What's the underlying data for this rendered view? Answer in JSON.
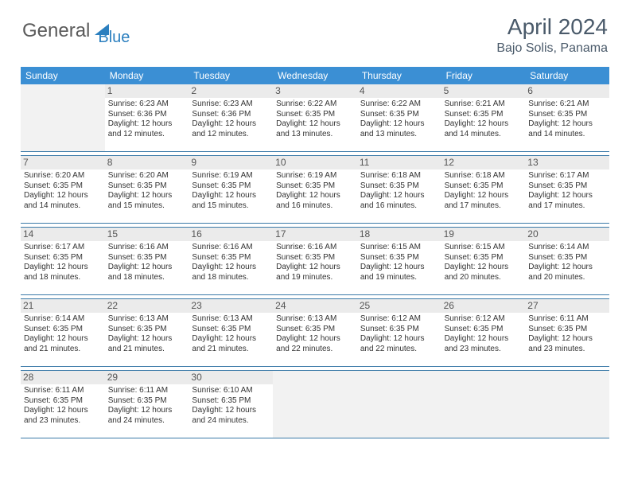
{
  "logo": {
    "part1": "General",
    "part2": "Blue"
  },
  "title": "April 2024",
  "location": "Bajo Solis, Panama",
  "colors": {
    "header_bg": "#3b8fd4",
    "border": "#3b7aa8",
    "logo_gray": "#5a5a5a",
    "logo_blue": "#2b7fbf",
    "title_color": "#4a5a6a",
    "daynum_bg": "#e8e8e8",
    "empty_bg": "#f2f2f2",
    "text": "#333333"
  },
  "weekdays": [
    "Sunday",
    "Monday",
    "Tuesday",
    "Wednesday",
    "Thursday",
    "Friday",
    "Saturday"
  ],
  "weeks": [
    [
      {
        "blank": true
      },
      {
        "day": "1",
        "sunrise": "6:23 AM",
        "sunset": "6:36 PM",
        "daylight": "12 hours and 12 minutes."
      },
      {
        "day": "2",
        "sunrise": "6:23 AM",
        "sunset": "6:36 PM",
        "daylight": "12 hours and 12 minutes."
      },
      {
        "day": "3",
        "sunrise": "6:22 AM",
        "sunset": "6:35 PM",
        "daylight": "12 hours and 13 minutes."
      },
      {
        "day": "4",
        "sunrise": "6:22 AM",
        "sunset": "6:35 PM",
        "daylight": "12 hours and 13 minutes."
      },
      {
        "day": "5",
        "sunrise": "6:21 AM",
        "sunset": "6:35 PM",
        "daylight": "12 hours and 14 minutes."
      },
      {
        "day": "6",
        "sunrise": "6:21 AM",
        "sunset": "6:35 PM",
        "daylight": "12 hours and 14 minutes."
      }
    ],
    [
      {
        "day": "7",
        "sunrise": "6:20 AM",
        "sunset": "6:35 PM",
        "daylight": "12 hours and 14 minutes."
      },
      {
        "day": "8",
        "sunrise": "6:20 AM",
        "sunset": "6:35 PM",
        "daylight": "12 hours and 15 minutes."
      },
      {
        "day": "9",
        "sunrise": "6:19 AM",
        "sunset": "6:35 PM",
        "daylight": "12 hours and 15 minutes."
      },
      {
        "day": "10",
        "sunrise": "6:19 AM",
        "sunset": "6:35 PM",
        "daylight": "12 hours and 16 minutes."
      },
      {
        "day": "11",
        "sunrise": "6:18 AM",
        "sunset": "6:35 PM",
        "daylight": "12 hours and 16 minutes."
      },
      {
        "day": "12",
        "sunrise": "6:18 AM",
        "sunset": "6:35 PM",
        "daylight": "12 hours and 17 minutes."
      },
      {
        "day": "13",
        "sunrise": "6:17 AM",
        "sunset": "6:35 PM",
        "daylight": "12 hours and 17 minutes."
      }
    ],
    [
      {
        "day": "14",
        "sunrise": "6:17 AM",
        "sunset": "6:35 PM",
        "daylight": "12 hours and 18 minutes."
      },
      {
        "day": "15",
        "sunrise": "6:16 AM",
        "sunset": "6:35 PM",
        "daylight": "12 hours and 18 minutes."
      },
      {
        "day": "16",
        "sunrise": "6:16 AM",
        "sunset": "6:35 PM",
        "daylight": "12 hours and 18 minutes."
      },
      {
        "day": "17",
        "sunrise": "6:16 AM",
        "sunset": "6:35 PM",
        "daylight": "12 hours and 19 minutes."
      },
      {
        "day": "18",
        "sunrise": "6:15 AM",
        "sunset": "6:35 PM",
        "daylight": "12 hours and 19 minutes."
      },
      {
        "day": "19",
        "sunrise": "6:15 AM",
        "sunset": "6:35 PM",
        "daylight": "12 hours and 20 minutes."
      },
      {
        "day": "20",
        "sunrise": "6:14 AM",
        "sunset": "6:35 PM",
        "daylight": "12 hours and 20 minutes."
      }
    ],
    [
      {
        "day": "21",
        "sunrise": "6:14 AM",
        "sunset": "6:35 PM",
        "daylight": "12 hours and 21 minutes."
      },
      {
        "day": "22",
        "sunrise": "6:13 AM",
        "sunset": "6:35 PM",
        "daylight": "12 hours and 21 minutes."
      },
      {
        "day": "23",
        "sunrise": "6:13 AM",
        "sunset": "6:35 PM",
        "daylight": "12 hours and 21 minutes."
      },
      {
        "day": "24",
        "sunrise": "6:13 AM",
        "sunset": "6:35 PM",
        "daylight": "12 hours and 22 minutes."
      },
      {
        "day": "25",
        "sunrise": "6:12 AM",
        "sunset": "6:35 PM",
        "daylight": "12 hours and 22 minutes."
      },
      {
        "day": "26",
        "sunrise": "6:12 AM",
        "sunset": "6:35 PM",
        "daylight": "12 hours and 23 minutes."
      },
      {
        "day": "27",
        "sunrise": "6:11 AM",
        "sunset": "6:35 PM",
        "daylight": "12 hours and 23 minutes."
      }
    ],
    [
      {
        "day": "28",
        "sunrise": "6:11 AM",
        "sunset": "6:35 PM",
        "daylight": "12 hours and 23 minutes."
      },
      {
        "day": "29",
        "sunrise": "6:11 AM",
        "sunset": "6:35 PM",
        "daylight": "12 hours and 24 minutes."
      },
      {
        "day": "30",
        "sunrise": "6:10 AM",
        "sunset": "6:35 PM",
        "daylight": "12 hours and 24 minutes."
      },
      {
        "blank": true
      },
      {
        "blank": true
      },
      {
        "blank": true
      },
      {
        "blank": true
      }
    ]
  ],
  "labels": {
    "sunrise_prefix": "Sunrise: ",
    "sunset_prefix": "Sunset: ",
    "daylight_prefix": "Daylight: "
  }
}
